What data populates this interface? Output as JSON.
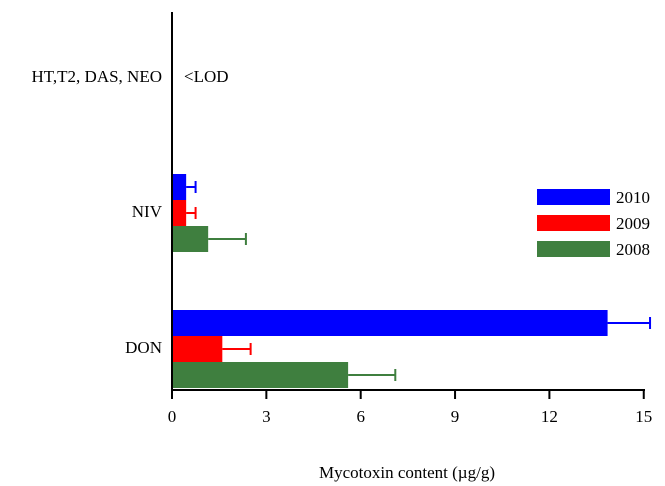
{
  "chart_data": {
    "type": "bar",
    "orientation": "horizontal",
    "categories": [
      "HT,T2, DAS, NEO",
      "NIV",
      "DON"
    ],
    "series": [
      {
        "name": "2010",
        "color": "#0000FF",
        "values": [
          null,
          0.45,
          13.85
        ],
        "errors": [
          null,
          0.3,
          1.35
        ]
      },
      {
        "name": "2009",
        "color": "#FF0000",
        "values": [
          null,
          0.45,
          1.6
        ],
        "errors": [
          null,
          0.3,
          0.9
        ]
      },
      {
        "name": "2008",
        "color": "#3F7F3F",
        "values": [
          null,
          1.15,
          5.6
        ],
        "errors": [
          null,
          1.2,
          1.5
        ]
      }
    ],
    "annotations": [
      {
        "category": "HT,T2, DAS, NEO",
        "text": "<LOD"
      }
    ],
    "xlabel": "Mycotoxin content (µg/g)",
    "xlim": [
      0,
      15
    ],
    "xticks": [
      0,
      3,
      6,
      9,
      12,
      15
    ],
    "grid": false,
    "legend_position": "right"
  }
}
